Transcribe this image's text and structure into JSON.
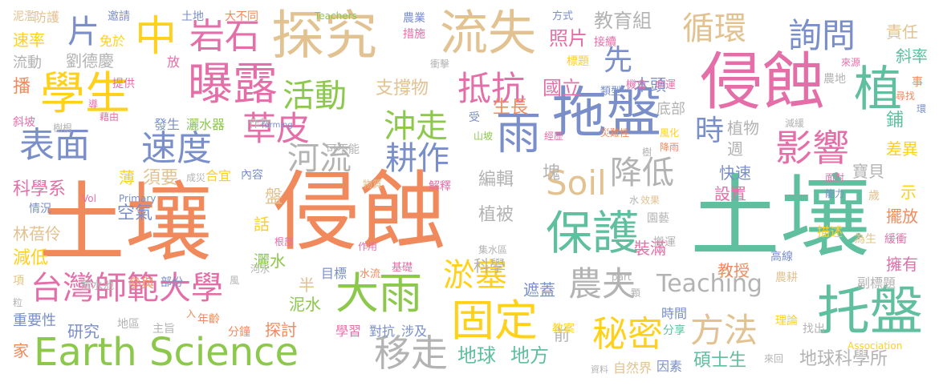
{
  "words": [
    {
      "text": "土壤",
      "color": "#f08a5d"
    },
    {
      "text": "侵蝕",
      "color": "#f08a5d"
    },
    {
      "text": "土壤",
      "color": "#5fbf9f"
    },
    {
      "text": "保護",
      "color": "#5fbf9f"
    },
    {
      "text": "探究",
      "color": "#e2c290"
    },
    {
      "text": "流失",
      "color": "#e2c290"
    },
    {
      "text": "侵蝕",
      "color": "#e46fa8"
    },
    {
      "text": "拖盤",
      "color": "#7a8fc9"
    },
    {
      "text": "托盤",
      "color": "#5fbf9f"
    },
    {
      "text": "Earth Science",
      "color": "#8cc84b"
    },
    {
      "text": "台灣師範大學",
      "color": "#e46fa8"
    },
    {
      "text": "學生",
      "color": "#ffd11a"
    },
    {
      "text": "岩石",
      "color": "#e46fa8"
    },
    {
      "text": "曝露",
      "color": "#e46fa8"
    },
    {
      "text": "中",
      "color": "#ffd11a"
    },
    {
      "text": "片",
      "color": "#7a8fc9"
    },
    {
      "text": "大雨",
      "color": "#8cc84b"
    },
    {
      "text": "固定",
      "color": "#ffd11a"
    },
    {
      "text": "秘密",
      "color": "#ffd11a"
    },
    {
      "text": "方法",
      "color": "#e2c290"
    },
    {
      "text": "影響",
      "color": "#e46fa8"
    },
    {
      "text": "詢問",
      "color": "#7a8fc9"
    },
    {
      "text": "循環",
      "color": "#e2c290"
    },
    {
      "text": "植",
      "color": "#5fbf9f"
    },
    {
      "text": "雨",
      "color": "#7a8fc9"
    },
    {
      "text": "移走",
      "color": "#b3b3b3"
    },
    {
      "text": "表面",
      "color": "#7a8fc9"
    },
    {
      "text": "速度",
      "color": "#7a8fc9"
    },
    {
      "text": "草皮",
      "color": "#e46fa8"
    },
    {
      "text": "活動",
      "color": "#8cc84b"
    },
    {
      "text": "抵抗",
      "color": "#e46fa8"
    },
    {
      "text": "沖走",
      "color": "#8cc84b"
    },
    {
      "text": "河流",
      "color": "#b3b3b3"
    },
    {
      "text": "耕作",
      "color": "#7a8fc9"
    },
    {
      "text": "淤塞",
      "color": "#ffd11a"
    },
    {
      "text": "農夫",
      "color": "#b3b3b3"
    },
    {
      "text": "降低",
      "color": "#b3b3b3"
    },
    {
      "text": "Soil",
      "color": "#e2c290"
    },
    {
      "text": "時",
      "color": "#7a8fc9"
    },
    {
      "text": "先",
      "color": "#7a8fc9"
    },
    {
      "text": "Teaching",
      "color": "#b3b3b3"
    },
    {
      "text": "地球",
      "color": "#5fbf9f"
    },
    {
      "text": "地方",
      "color": "#5fbf9f"
    },
    {
      "text": "地球科學所",
      "color": "#b3b3b3"
    },
    {
      "text": "碩士生",
      "color": "#5fbf9f"
    },
    {
      "text": "空氣",
      "color": "#7a8fc9"
    },
    {
      "text": "科學系",
      "color": "#e46fa8"
    },
    {
      "text": "林蓓伶",
      "color": "#e2c290"
    },
    {
      "text": "減低",
      "color": "#ffd11a"
    },
    {
      "text": "研究",
      "color": "#7a8fc9"
    },
    {
      "text": "探討",
      "color": "#f08a5d"
    },
    {
      "text": "泥水",
      "color": "#8cc84b"
    },
    {
      "text": "灑水",
      "color": "#8cc84b"
    },
    {
      "text": "教育組",
      "color": "#b3b3b3"
    },
    {
      "text": "照片",
      "color": "#e46fa8"
    },
    {
      "text": "國立",
      "color": "#e46fa8"
    },
    {
      "text": "生長",
      "color": "#f08a5d"
    },
    {
      "text": "支撐物",
      "color": "#e2c290"
    },
    {
      "text": "木頭",
      "color": "#7a8fc9"
    },
    {
      "text": "底部",
      "color": "#b3b3b3"
    },
    {
      "text": "植物",
      "color": "#b3b3b3"
    },
    {
      "text": "週",
      "color": "#b3b3b3"
    },
    {
      "text": "快速",
      "color": "#7a8fc9"
    },
    {
      "text": "設置",
      "color": "#e46fa8"
    },
    {
      "text": "教授",
      "color": "#f08a5d"
    },
    {
      "text": "裝滿",
      "color": "#e46fa8"
    },
    {
      "text": "寶貝",
      "color": "#b3b3b3"
    },
    {
      "text": "示",
      "color": "#ffd11a"
    },
    {
      "text": "擺放",
      "color": "#f08a5d"
    },
    {
      "text": "擁有",
      "color": "#e46fa8"
    },
    {
      "text": "差異",
      "color": "#ffd11a"
    },
    {
      "text": "斜率",
      "color": "#5fbf9f"
    },
    {
      "text": "責任",
      "color": "#e2c290"
    },
    {
      "text": "鋪",
      "color": "#5fbf9f"
    },
    {
      "text": "塊",
      "color": "#b3b3b3"
    },
    {
      "text": "編輯",
      "color": "#b3b3b3"
    },
    {
      "text": "植被",
      "color": "#b3b3b3"
    },
    {
      "text": "科學",
      "color": "#b3b3b3"
    },
    {
      "text": "遮蓋",
      "color": "#7a8fc9"
    },
    {
      "text": "盤",
      "color": "#e2c290"
    },
    {
      "text": "話",
      "color": "#ffd11a"
    },
    {
      "text": "半",
      "color": "#e2c290"
    },
    {
      "text": "須要",
      "color": "#e2c290"
    },
    {
      "text": "薄",
      "color": "#ffd11a"
    },
    {
      "text": "速率",
      "color": "#ffd11a"
    },
    {
      "text": "流動",
      "color": "#b3b3b3"
    },
    {
      "text": "劉德慶",
      "color": "#b3b3b3"
    },
    {
      "text": "播",
      "color": "#f08a5d"
    },
    {
      "text": "防護",
      "color": "#e2c290"
    },
    {
      "text": "免於",
      "color": "#ffd11a"
    },
    {
      "text": "放",
      "color": "#e46fa8"
    },
    {
      "text": "前",
      "color": "#b3b3b3"
    },
    {
      "text": "時間",
      "color": "#7a8fc9"
    },
    {
      "text": "農耕",
      "color": "#e2c290"
    },
    {
      "text": "副標題",
      "color": "#b3b3b3"
    },
    {
      "text": "學習",
      "color": "#e46fa8"
    },
    {
      "text": "對抗",
      "color": "#7a8fc9"
    },
    {
      "text": "涉及",
      "color": "#7a8fc9"
    },
    {
      "text": "分鐘",
      "color": "#f08a5d"
    },
    {
      "text": "年齡",
      "color": "#f08a5d"
    },
    {
      "text": "主旨",
      "color": "#b3b3b3"
    },
    {
      "text": "地區",
      "color": "#b3b3b3"
    },
    {
      "text": "重要性",
      "color": "#7a8fc9"
    },
    {
      "text": "家",
      "color": "#f08a5d"
    },
    {
      "text": "教案",
      "color": "#ffd11a"
    },
    {
      "text": "自然界",
      "color": "#e2c290"
    },
    {
      "text": "因素",
      "color": "#7a8fc9"
    },
    {
      "text": "來回",
      "color": "#b3b3b3"
    },
    {
      "text": "找出",
      "color": "#b3b3b3"
    },
    {
      "text": "描述",
      "color": "#ffd11a"
    },
    {
      "text": "高線",
      "color": "#7a8fc9"
    },
    {
      "text": "搬運",
      "color": "#b3b3b3"
    },
    {
      "text": "園藝",
      "color": "#b3b3b3"
    },
    {
      "text": "為生",
      "color": "#e2c290"
    },
    {
      "text": "緩衝",
      "color": "#e46fa8"
    },
    {
      "text": "理論",
      "color": "#ffd11a"
    },
    {
      "text": "分享",
      "color": "#5fbf9f"
    },
    {
      "text": "歲",
      "color": "#e2c290"
    },
    {
      "text": "目標",
      "color": "#7a8fc9"
    },
    {
      "text": "水流",
      "color": "#f08a5d"
    },
    {
      "text": "基礎",
      "color": "#e46fa8"
    },
    {
      "text": "參與",
      "color": "#f08a5d"
    },
    {
      "text": "部份",
      "color": "#7a8fc9"
    },
    {
      "text": "蓄水池",
      "color": "#b3b3b3"
    },
    {
      "text": "內容",
      "color": "#7a8fc9"
    },
    {
      "text": "合宜",
      "color": "#ffd11a"
    },
    {
      "text": "成災",
      "color": "#b3b3b3"
    },
    {
      "text": "解釋",
      "color": "#e46fa8"
    },
    {
      "text": "物質",
      "color": "#e2c290"
    },
    {
      "text": "可不能",
      "color": "#b3b3b3"
    },
    {
      "text": "作物",
      "color": "#b3b3b3"
    },
    {
      "text": "灑水器",
      "color": "#8cc84b"
    },
    {
      "text": "發生",
      "color": "#7a8fc9"
    },
    {
      "text": "提供",
      "color": "#e46fa8"
    },
    {
      "text": "斜坡",
      "color": "#e46fa8"
    },
    {
      "text": "泥濫",
      "color": "#e2c290"
    },
    {
      "text": "邀請",
      "color": "#7a8fc9"
    },
    {
      "text": "土地",
      "color": "#7a8fc9"
    },
    {
      "text": "大不同",
      "color": "#f08a5d"
    },
    {
      "text": "Teachers",
      "color": "#8cc84b"
    },
    {
      "text": "農業",
      "color": "#7a8fc9"
    },
    {
      "text": "措施",
      "color": "#e46fa8"
    },
    {
      "text": "方式",
      "color": "#7a8fc9"
    },
    {
      "text": "接續",
      "color": "#e46fa8"
    },
    {
      "text": "標題",
      "color": "#ffd11a"
    },
    {
      "text": "機會",
      "color": "#e46fa8"
    },
    {
      "text": "命運",
      "color": "#e46fa8"
    },
    {
      "text": "類型",
      "color": "#7a8fc9"
    },
    {
      "text": "來源",
      "color": "#e46fa8"
    },
    {
      "text": "農地",
      "color": "#b3b3b3"
    },
    {
      "text": "事",
      "color": "#f08a5d"
    },
    {
      "text": "尋找",
      "color": "#f08a5d"
    },
    {
      "text": "環",
      "color": "#7a8fc9"
    },
    {
      "text": "減緩",
      "color": "#b3b3b3"
    },
    {
      "text": "受",
      "color": "#7a8fc9"
    },
    {
      "text": "山坡",
      "color": "#8cc84b"
    },
    {
      "text": "衝擊",
      "color": "#b3b3b3"
    },
    {
      "text": "經歷",
      "color": "#e46fa8"
    },
    {
      "text": "災難性",
      "color": "#f08a5d"
    },
    {
      "text": "風化",
      "color": "#ffd11a"
    },
    {
      "text": "降雨",
      "color": "#f08a5d"
    },
    {
      "text": "樹",
      "color": "#b3b3b3"
    },
    {
      "text": "面對",
      "color": "#e46fa8"
    },
    {
      "text": "能力",
      "color": "#7a8fc9"
    },
    {
      "text": "水",
      "color": "#b3b3b3"
    },
    {
      "text": "效果",
      "color": "#e2c290"
    },
    {
      "text": "Primary",
      "color": "#7a8fc9"
    },
    {
      "text": "Vol",
      "color": "#e46fa8"
    },
    {
      "text": "情況",
      "color": "#7a8fc9"
    },
    {
      "text": "根部",
      "color": "#e46fa8"
    },
    {
      "text": "作用",
      "color": "#e46fa8"
    },
    {
      "text": "河水",
      "color": "#b3b3b3"
    },
    {
      "text": "風",
      "color": "#b3b3b3"
    },
    {
      "text": "集水區",
      "color": "#b3b3b3"
    },
    {
      "text": "part",
      "color": "#b3b3b3"
    },
    {
      "text": "顆",
      "color": "#b3b3b3"
    },
    {
      "text": "項",
      "color": "#e2c290"
    },
    {
      "text": "粒",
      "color": "#b3b3b3"
    },
    {
      "text": "導",
      "color": "#e46fa8"
    },
    {
      "text": "藉由",
      "color": "#e46fa8"
    },
    {
      "text": "樹根",
      "color": "#b3b3b3"
    },
    {
      "text": "forming",
      "color": "#7a8fc9"
    },
    {
      "text": "入",
      "color": "#f08a5d"
    },
    {
      "text": "資料",
      "color": "#b3b3b3"
    },
    {
      "text": "Association",
      "color": "#ffd11a"
    }
  ]
}
